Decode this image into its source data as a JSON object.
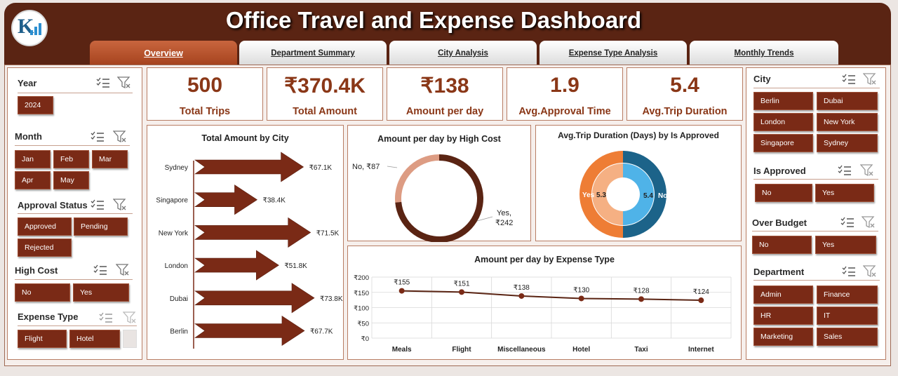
{
  "header": {
    "title": "Office Travel and Expense Dashboard"
  },
  "tabs": [
    {
      "label": "Overview",
      "active": true
    },
    {
      "label": "Department Summary"
    },
    {
      "label": "City Analysis"
    },
    {
      "label": "Expense Type Analysis"
    },
    {
      "label": "Monthly Trends"
    }
  ],
  "left_slicers": {
    "year": {
      "title": "Year",
      "items": [
        "2024"
      ]
    },
    "month": {
      "title": "Month",
      "items": [
        "Jan",
        "Feb",
        "Mar",
        "Apr",
        "May"
      ]
    },
    "approval_status": {
      "title": "Approval Status",
      "items": [
        "Approved",
        "Pending",
        "Rejected"
      ]
    },
    "high_cost": {
      "title": "High Cost",
      "items": [
        "No",
        "Yes"
      ]
    },
    "expense_type": {
      "title": "Expense Type",
      "items": [
        "Flight",
        "Hotel"
      ]
    }
  },
  "right_slicers": {
    "city": {
      "title": "City",
      "items": [
        "Berlin",
        "Dubai",
        "London",
        "New York",
        "Singapore",
        "Sydney"
      ]
    },
    "is_approved": {
      "title": "Is Approved",
      "items": [
        "No",
        "Yes"
      ]
    },
    "over_budget": {
      "title": "Over Budget",
      "items": [
        "No",
        "Yes"
      ]
    },
    "department": {
      "title": "Department",
      "items": [
        "Admin",
        "Finance",
        "HR",
        "IT",
        "Marketing",
        "Sales"
      ]
    }
  },
  "kpis": [
    {
      "value": "500",
      "label": "Total Trips"
    },
    {
      "value": "₹370.4K",
      "label": "Total Amount"
    },
    {
      "value": "₹138",
      "label": "Amount per day"
    },
    {
      "value": "1.9",
      "label": "Avg.Approval Time"
    },
    {
      "value": "5.4",
      "label": "Avg.Trip Duration"
    }
  ],
  "colors": {
    "brown": "#7a2a16",
    "header": "#5a2413",
    "orange": "#ee7d35",
    "blue": "#1c6389",
    "light_blue": "#4fb3e8",
    "pale_brown": "#dd9c83"
  },
  "chart_data": [
    {
      "type": "bar",
      "title": "Total Amount by City",
      "categories": [
        "Sydney",
        "Singapore",
        "New York",
        "London",
        "Dubai",
        "Berlin"
      ],
      "values": [
        67.1,
        38.4,
        71.5,
        51.8,
        73.8,
        67.7
      ],
      "labels": [
        "₹67.1K",
        "₹38.4K",
        "₹71.5K",
        "₹51.8K",
        "₹73.8K",
        "₹67.7K"
      ]
    },
    {
      "type": "pie",
      "title": "Amount per day by High Cost",
      "categories": [
        "No",
        "Yes"
      ],
      "values": [
        87,
        242
      ],
      "labels": [
        "No, ₹87",
        "Yes, ₹242"
      ]
    },
    {
      "type": "pie",
      "title": "Avg.Trip Duration (Days) by Is Approved",
      "categories": [
        "Yes",
        "No"
      ],
      "values": [
        5.3,
        5.4
      ]
    },
    {
      "type": "line",
      "title": "Amount per day by Expense Type",
      "categories": [
        "Meals",
        "Flight",
        "Miscellaneous",
        "Hotel",
        "Taxi",
        "Internet"
      ],
      "values": [
        155,
        151,
        138,
        130,
        128,
        124
      ],
      "labels": [
        "₹155",
        "₹151",
        "₹138",
        "₹130",
        "₹128",
        "₹124"
      ],
      "yticks": [
        "₹200",
        "₹150",
        "₹100",
        "₹50",
        "₹0"
      ],
      "ylim": [
        0,
        200
      ],
      "grid": true
    }
  ]
}
